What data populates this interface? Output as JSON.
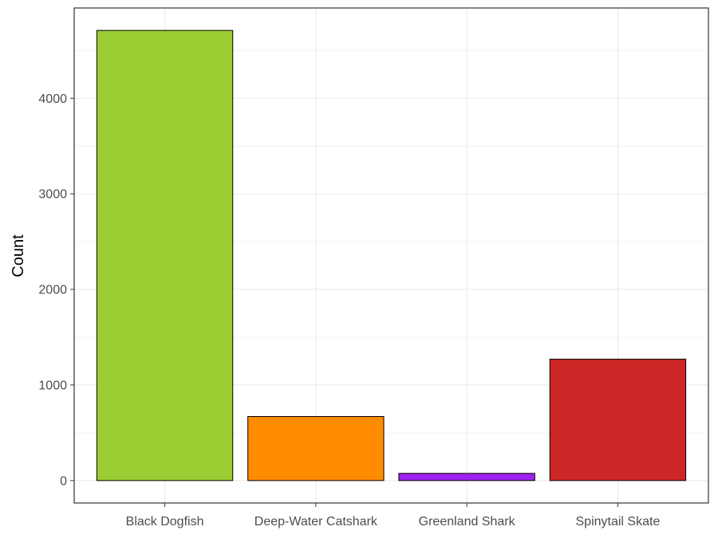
{
  "chart_data": {
    "type": "bar",
    "categories": [
      "Black Dogfish",
      "Deep-Water Catshark",
      "Greenland Shark",
      "Spinytail Skate"
    ],
    "values": [
      4710,
      670,
      75,
      1270
    ],
    "colors": [
      "#9ACD32",
      "#FF8C00",
      "#A020F0",
      "#CD2626"
    ],
    "ylabel": "Count",
    "ylim": [
      -235,
      4945
    ],
    "yticks": [
      0,
      1000,
      2000,
      3000,
      4000
    ],
    "grid": true,
    "legend": "none"
  }
}
